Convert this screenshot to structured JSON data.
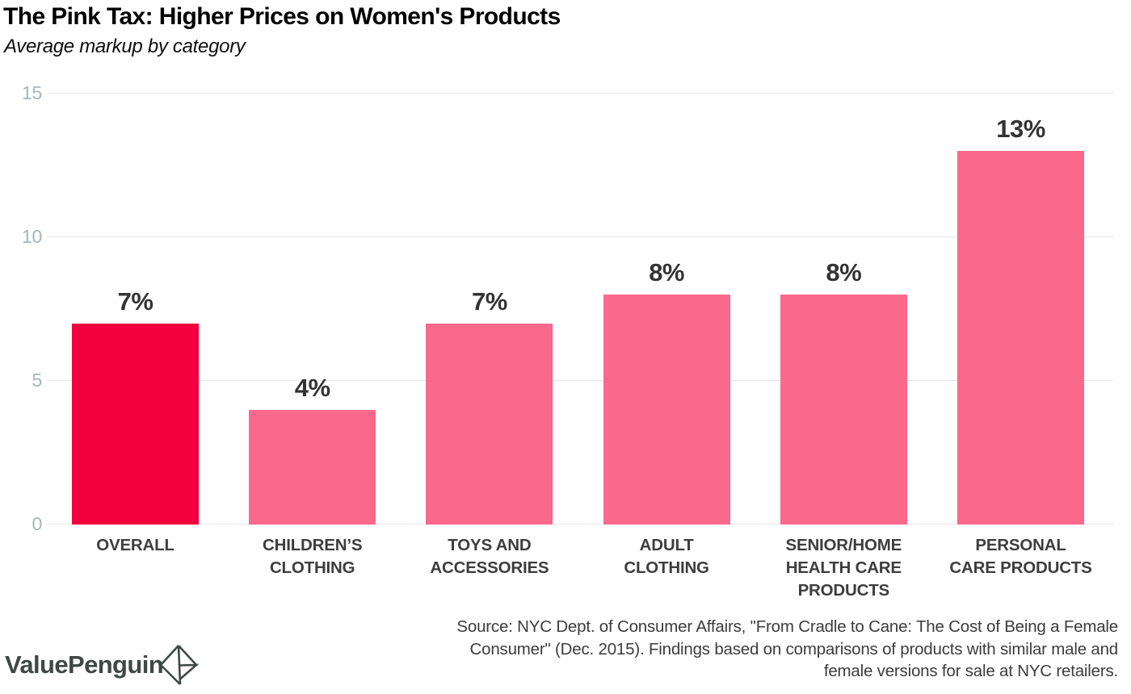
{
  "chart_data": {
    "type": "bar",
    "title": "The Pink Tax: Higher Prices on Women's Products",
    "subtitle": "Average markup by category",
    "categories": [
      "Overall",
      "Children's Clothing",
      "Toys and Accessories",
      "Adult Clothing",
      "Senior/Home Health Care Products",
      "Personal Care Products"
    ],
    "category_lines": [
      [
        "OVERALL"
      ],
      [
        "CHILDREN’S",
        "CLOTHING"
      ],
      [
        "TOYS AND",
        "ACCESSORIES"
      ],
      [
        "ADULT",
        "CLOTHING"
      ],
      [
        "SENIOR/HOME",
        "HEALTH CARE",
        "PRODUCTS"
      ],
      [
        "PERSONAL",
        "CARE PRODUCTS"
      ]
    ],
    "values": [
      7,
      4,
      7,
      8,
      8,
      13
    ],
    "value_labels": [
      "7%",
      "4%",
      "7%",
      "8%",
      "8%",
      "13%"
    ],
    "ylim": [
      0,
      15
    ],
    "yticks": [
      0,
      5,
      10,
      15
    ],
    "grid": true,
    "legend": "none",
    "bar_colors": [
      "#F4003E",
      "#FA698C",
      "#FA698C",
      "#FA698C",
      "#FA698C",
      "#FA698C"
    ],
    "highlight_color": "#F4003E",
    "base_color": "#FA698C"
  },
  "colors": {
    "gridline": "#E4E6E7",
    "tick_label": "#AAB4BC",
    "value_label": "#333333",
    "category_label": "#3D3D3D",
    "source_text": "#3C3C3C",
    "brand": "#3F4845"
  },
  "footer": {
    "brand": "ValuePenguin",
    "brand_icon": "valuepenguin-diamond-icon",
    "source_lines": [
      "Source: NYC Dept. of Consumer Affairs, \"From Cradle to Cane: The Cost of Being a Female",
      "Consumer\" (Dec. 2015). Findings based on comparisons of products with similar male and",
      "female versions for sale at NYC retailers."
    ]
  }
}
